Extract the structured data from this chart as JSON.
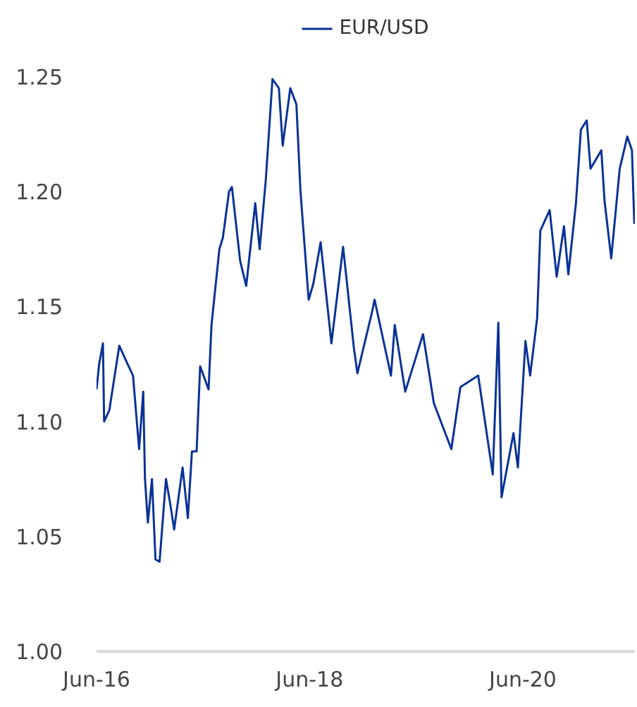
{
  "chart_data": {
    "type": "line",
    "legend": "top",
    "grid": false,
    "line_style": "solid",
    "xlim": [
      "2016-06-01",
      "2021-06-20"
    ],
    "xticks": [
      {
        "value": "2016-06-01",
        "label": "Jun-16"
      },
      {
        "value": "2018-06-01",
        "label": "Jun-18"
      },
      {
        "value": "2020-06-01",
        "label": "Jun-20"
      }
    ],
    "ylim": [
      1.0,
      1.25
    ],
    "yticks": [
      {
        "value": 1.0,
        "label": "1.00"
      },
      {
        "value": 1.05,
        "label": "1.05"
      },
      {
        "value": 1.1,
        "label": "1.10"
      },
      {
        "value": 1.15,
        "label": "1.15"
      },
      {
        "value": 1.2,
        "label": "1.20"
      },
      {
        "value": 1.25,
        "label": "1.25"
      }
    ],
    "x": [
      "2016-06-01",
      "2016-06-10",
      "2016-06-23",
      "2016-06-27",
      "2016-07-15",
      "2016-08-18",
      "2016-09-08",
      "2016-10-04",
      "2016-10-25",
      "2016-11-08",
      "2016-11-14",
      "2016-11-24",
      "2016-12-08",
      "2016-12-20",
      "2017-01-03",
      "2017-01-25",
      "2017-02-10",
      "2017-02-22",
      "2017-03-23",
      "2017-04-10",
      "2017-04-24",
      "2017-05-10",
      "2017-05-22",
      "2017-06-20",
      "2017-06-30",
      "2017-07-27",
      "2017-08-08",
      "2017-08-29",
      "2017-09-08",
      "2017-10-06",
      "2017-10-27",
      "2017-11-27",
      "2017-12-12",
      "2018-01-02",
      "2018-01-25",
      "2018-02-16",
      "2018-03-01",
      "2018-03-27",
      "2018-04-17",
      "2018-05-01",
      "2018-05-29",
      "2018-06-14",
      "2018-07-09",
      "2018-08-15",
      "2018-09-24",
      "2018-10-31",
      "2018-11-12",
      "2018-12-31",
      "2019-01-10",
      "2019-03-07",
      "2019-03-20",
      "2019-04-25",
      "2019-06-25",
      "2019-08-01",
      "2019-09-30",
      "2019-10-31",
      "2019-12-31",
      "2020-02-19",
      "2020-03-09",
      "2020-03-20",
      "2020-04-30",
      "2020-05-15",
      "2020-06-10",
      "2020-06-26",
      "2020-07-20",
      "2020-07-31",
      "2020-09-01",
      "2020-09-25",
      "2020-10-20",
      "2020-11-04",
      "2020-11-30",
      "2020-12-17",
      "2021-01-06",
      "2021-01-19",
      "2021-02-25",
      "2021-03-08",
      "2021-03-31",
      "2021-04-29",
      "2021-05-25",
      "2021-06-10",
      "2021-06-18"
    ],
    "series": [
      {
        "name": "EUR/USD",
        "color": "#0a3296",
        "values": [
          1.114,
          1.125,
          1.134,
          1.1,
          1.105,
          1.133,
          1.127,
          1.12,
          1.088,
          1.113,
          1.075,
          1.056,
          1.075,
          1.04,
          1.039,
          1.075,
          1.063,
          1.053,
          1.08,
          1.058,
          1.087,
          1.087,
          1.124,
          1.114,
          1.142,
          1.175,
          1.18,
          1.2,
          1.202,
          1.17,
          1.159,
          1.195,
          1.175,
          1.205,
          1.249,
          1.245,
          1.22,
          1.245,
          1.238,
          1.2,
          1.153,
          1.16,
          1.178,
          1.134,
          1.176,
          1.132,
          1.121,
          1.147,
          1.153,
          1.12,
          1.142,
          1.113,
          1.138,
          1.108,
          1.088,
          1.115,
          1.12,
          1.077,
          1.143,
          1.067,
          1.095,
          1.08,
          1.135,
          1.12,
          1.145,
          1.183,
          1.192,
          1.163,
          1.185,
          1.164,
          1.195,
          1.227,
          1.231,
          1.21,
          1.218,
          1.196,
          1.171,
          1.21,
          1.224,
          1.218,
          1.186
        ]
      }
    ]
  }
}
